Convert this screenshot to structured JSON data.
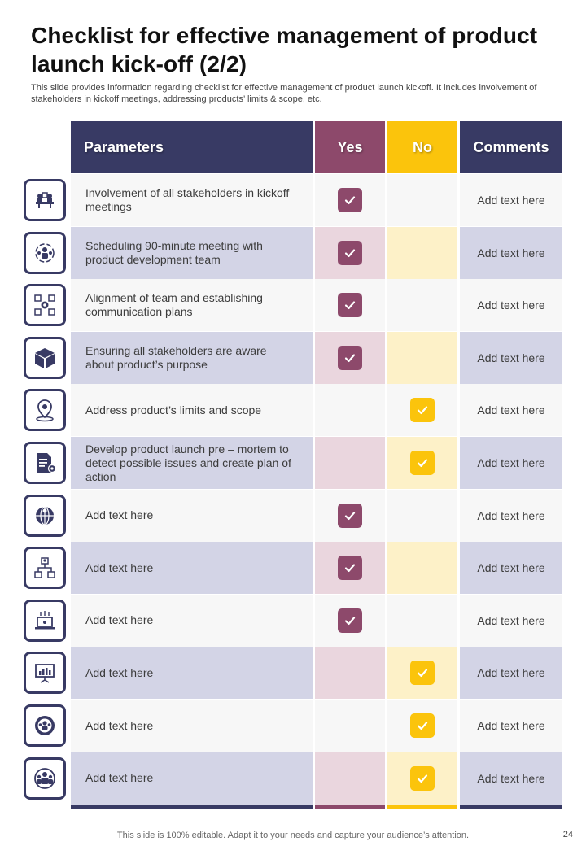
{
  "title": "Checklist for effective management of product launch kick-off (2/2)",
  "subtitle": "This slide provides information regarding checklist for effective management of product launch kickoff. It includes involvement of stakeholders in kickoff meetings, addressing products’ limits & scope, etc.",
  "headers": {
    "parameters": "Parameters",
    "yes": "Yes",
    "no": "No",
    "comments": "Comments"
  },
  "colors": {
    "navy": "#383a64",
    "plum": "#8d496b",
    "amber": "#fbc40c"
  },
  "rows": [
    {
      "icon": "meeting-icon",
      "parameter": "Involvement of all stakeholders in kickoff meetings",
      "check": "yes",
      "comment": "Add text here"
    },
    {
      "icon": "team-cycle-icon",
      "parameter": "Scheduling 90-minute meeting with product development team",
      "check": "yes",
      "comment": "Add text here"
    },
    {
      "icon": "network-gear-icon",
      "parameter": "Alignment of team and establishing communication plans",
      "check": "yes",
      "comment": "Add text here"
    },
    {
      "icon": "package-box-icon",
      "parameter": "Ensuring all stakeholders are aware about product’s purpose",
      "check": "yes",
      "comment": "Add text here"
    },
    {
      "icon": "location-pin-icon",
      "parameter": "Address product’s limits and scope",
      "check": "no",
      "comment": "Add text here"
    },
    {
      "icon": "document-gear-icon",
      "parameter": "Develop product launch pre – mortem to detect possible issues and create plan of action",
      "check": "no",
      "comment": "Add text here"
    },
    {
      "icon": "global-team-icon",
      "parameter": "Add text here",
      "check": "yes",
      "comment": "Add text here"
    },
    {
      "icon": "hierarchy-icon",
      "parameter": "Add text here",
      "check": "yes",
      "comment": "Add text here"
    },
    {
      "icon": "laptop-signal-icon",
      "parameter": "Add text here",
      "check": "yes",
      "comment": "Add text here"
    },
    {
      "icon": "presentation-board-icon",
      "parameter": "Add text here",
      "check": "no",
      "comment": "Add text here"
    },
    {
      "icon": "group-gear-icon",
      "parameter": "Add text here",
      "check": "no",
      "comment": "Add text here"
    },
    {
      "icon": "team-circle-icon",
      "parameter": "Add text here",
      "check": "no",
      "comment": "Add text here"
    }
  ],
  "footer": {
    "note": "This slide is 100% editable. Adapt it to your needs and capture your audience’s attention.",
    "page": "24"
  }
}
